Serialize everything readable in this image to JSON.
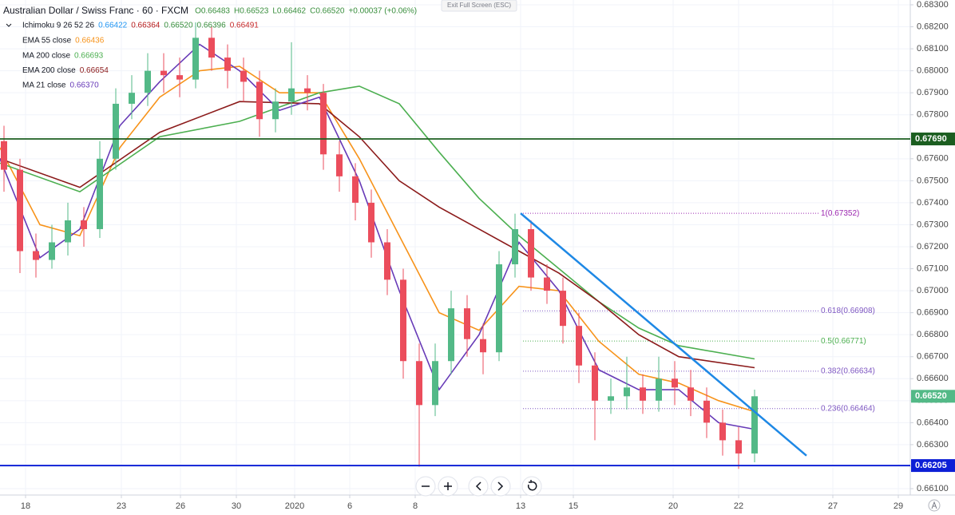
{
  "ui": {
    "exit": "Exit Full Screen (ESC)"
  },
  "chart_data": {
    "type": "candlestick",
    "title": "Australian Dollar / Swiss Franc · 60 · FXCM",
    "ohlc_labels": [
      "O0.66483",
      "H0.66523",
      "L0.66462",
      "C0.66520",
      "+0.00037 (+0.06%)"
    ],
    "ichimoku": {
      "name": "Ichimoku 9 26 52 26",
      "values": [
        "0.66422",
        "0.66364",
        "0.66520",
        "0.66396",
        "0.66491"
      ],
      "colors": [
        "#2196f3",
        "#b71c1c",
        "#388e3c",
        "#388e3c",
        "#c62828"
      ]
    },
    "up_color": "#53b987",
    "down_color": "#eb4d5c",
    "xlim": [
      0,
      1140
    ],
    "xticks": [
      {
        "value": 32,
        "label": "18"
      },
      {
        "value": 152,
        "label": "23"
      },
      {
        "value": 226,
        "label": "26"
      },
      {
        "value": 296,
        "label": "30"
      },
      {
        "value": 369,
        "label": "2020"
      },
      {
        "value": 438,
        "label": "6"
      },
      {
        "value": 520,
        "label": "8"
      },
      {
        "value": 652,
        "label": "13"
      },
      {
        "value": 718,
        "label": "15"
      },
      {
        "value": 843,
        "label": "20"
      },
      {
        "value": 925,
        "label": "22"
      },
      {
        "value": 1043,
        "label": "27"
      },
      {
        "value": 1125,
        "label": "29"
      }
    ],
    "ylim": [
      0.6608,
      0.683
    ],
    "yticks": [
      {
        "value": 0.661,
        "label": "0.66100"
      },
      {
        "value": 0.662,
        "label": "0.66200"
      },
      {
        "value": 0.663,
        "label": "0.66300"
      },
      {
        "value": 0.664,
        "label": "0.66400"
      },
      {
        "value": 0.665,
        "label": "0.66500"
      },
      {
        "value": 0.666,
        "label": "0.66600"
      },
      {
        "value": 0.667,
        "label": "0.66700"
      },
      {
        "value": 0.668,
        "label": "0.66800"
      },
      {
        "value": 0.669,
        "label": "0.66900"
      },
      {
        "value": 0.67,
        "label": "0.67000"
      },
      {
        "value": 0.671,
        "label": "0.67100"
      },
      {
        "value": 0.672,
        "label": "0.67200"
      },
      {
        "value": 0.673,
        "label": "0.67300"
      },
      {
        "value": 0.674,
        "label": "0.67400"
      },
      {
        "value": 0.675,
        "label": "0.67500"
      },
      {
        "value": 0.676,
        "label": "0.67600"
      },
      {
        "value": 0.677,
        "label": "0.67700"
      },
      {
        "value": 0.678,
        "label": "0.67800"
      },
      {
        "value": 0.679,
        "label": "0.67900"
      },
      {
        "value": 0.68,
        "label": "0.68000"
      },
      {
        "value": 0.681,
        "label": "0.68100"
      },
      {
        "value": 0.682,
        "label": "0.68200"
      },
      {
        "value": 0.683,
        "label": "0.68300"
      }
    ],
    "grid": true,
    "x": [
      5,
      25,
      45,
      65,
      85,
      105,
      125,
      145,
      165,
      185,
      205,
      225,
      245,
      265,
      285,
      305,
      325,
      345,
      365,
      385,
      405,
      425,
      445,
      465,
      485,
      505,
      525,
      545,
      565,
      585,
      605,
      625,
      645,
      665,
      685,
      705,
      725,
      745,
      765,
      785,
      805,
      825,
      845,
      865,
      885,
      905,
      925,
      945
    ],
    "open": [
      0.6768,
      0.6755,
      0.6718,
      0.6714,
      0.6722,
      0.6732,
      0.6728,
      0.676,
      0.6785,
      0.679,
      0.68,
      0.6798,
      0.6796,
      0.6815,
      0.6806,
      0.68,
      0.6795,
      0.6778,
      0.6786,
      0.6792,
      0.679,
      0.6762,
      0.6752,
      0.674,
      0.6722,
      0.6705,
      0.6668,
      0.6648,
      0.6668,
      0.6692,
      0.6678,
      0.6672,
      0.6712,
      0.6728,
      0.6706,
      0.67,
      0.6684,
      0.6666,
      0.665,
      0.6652,
      0.6656,
      0.665,
      0.666,
      0.6656,
      0.665,
      0.664,
      0.6632,
      0.6626
    ],
    "high": [
      0.6775,
      0.676,
      0.6726,
      0.673,
      0.674,
      0.6738,
      0.6768,
      0.6792,
      0.6798,
      0.6808,
      0.6808,
      0.6806,
      0.6822,
      0.682,
      0.6812,
      0.6806,
      0.68,
      0.6792,
      0.6813,
      0.6798,
      0.6794,
      0.6768,
      0.6758,
      0.6746,
      0.6728,
      0.671,
      0.6676,
      0.6676,
      0.67,
      0.6698,
      0.6685,
      0.6718,
      0.6735,
      0.6732,
      0.6712,
      0.6706,
      0.669,
      0.6672,
      0.666,
      0.667,
      0.6662,
      0.667,
      0.6668,
      0.6664,
      0.6656,
      0.6646,
      0.6638,
      0.6655
    ],
    "low": [
      0.6745,
      0.6708,
      0.6706,
      0.671,
      0.6716,
      0.672,
      0.6724,
      0.6755,
      0.6778,
      0.6784,
      0.679,
      0.6788,
      0.6792,
      0.68,
      0.6792,
      0.6786,
      0.677,
      0.6772,
      0.678,
      0.6782,
      0.6755,
      0.6745,
      0.6732,
      0.6715,
      0.6698,
      0.666,
      0.662,
      0.6643,
      0.6662,
      0.667,
      0.6662,
      0.6668,
      0.6706,
      0.67,
      0.6694,
      0.6676,
      0.6658,
      0.6632,
      0.6644,
      0.6646,
      0.6644,
      0.6645,
      0.6648,
      0.6643,
      0.6633,
      0.6625,
      0.6619,
      0.6622
    ],
    "close": [
      0.6755,
      0.6718,
      0.6714,
      0.6722,
      0.6732,
      0.6728,
      0.676,
      0.6785,
      0.679,
      0.68,
      0.6798,
      0.6796,
      0.6815,
      0.6806,
      0.68,
      0.6795,
      0.6778,
      0.6786,
      0.6792,
      0.679,
      0.6762,
      0.6752,
      0.674,
      0.6722,
      0.6705,
      0.6668,
      0.6648,
      0.6668,
      0.6692,
      0.6678,
      0.6672,
      0.6712,
      0.6728,
      0.6706,
      0.67,
      0.6684,
      0.6666,
      0.665,
      0.6652,
      0.6656,
      0.665,
      0.666,
      0.6656,
      0.665,
      0.664,
      0.6632,
      0.6626,
      0.6652
    ],
    "lines": [
      {
        "name": "EMA 55 close",
        "legend_value": "0.66436",
        "color": "#f7931a",
        "x": [
          0,
          50,
          100,
          150,
          200,
          250,
          300,
          350,
          400,
          450,
          500,
          550,
          600,
          650,
          700,
          750,
          800,
          850,
          900,
          945
        ],
        "values": [
          0.6765,
          0.673,
          0.6725,
          0.6765,
          0.6788,
          0.68,
          0.6802,
          0.679,
          0.679,
          0.676,
          0.6725,
          0.669,
          0.6682,
          0.6702,
          0.67,
          0.6677,
          0.6662,
          0.6658,
          0.665,
          0.6645
        ]
      },
      {
        "name": "MA 200 close",
        "legend_value": "0.66693",
        "color": "#4caf50",
        "x": [
          0,
          100,
          200,
          300,
          400,
          450,
          500,
          550,
          600,
          650,
          700,
          750,
          800,
          850,
          945
        ],
        "values": [
          0.6758,
          0.6745,
          0.677,
          0.6777,
          0.679,
          0.6793,
          0.6785,
          0.6763,
          0.6742,
          0.6725,
          0.671,
          0.6695,
          0.6683,
          0.6675,
          0.6669
        ]
      },
      {
        "name": "EMA 200 close",
        "legend_value": "0.66654",
        "color": "#8b1a1a",
        "x": [
          0,
          100,
          200,
          300,
          400,
          450,
          500,
          550,
          600,
          650,
          700,
          750,
          800,
          850,
          945
        ],
        "values": [
          0.676,
          0.6747,
          0.6772,
          0.6786,
          0.6785,
          0.677,
          0.675,
          0.6738,
          0.6728,
          0.6718,
          0.6708,
          0.6695,
          0.668,
          0.667,
          0.6665
        ]
      },
      {
        "name": "MA 21 close",
        "legend_value": "0.66370",
        "color": "#673ab7",
        "x": [
          0,
          50,
          100,
          150,
          200,
          250,
          300,
          350,
          400,
          450,
          500,
          550,
          600,
          650,
          700,
          750,
          800,
          850,
          900,
          945
        ],
        "values": [
          0.676,
          0.6715,
          0.6728,
          0.6775,
          0.6795,
          0.6812,
          0.68,
          0.6782,
          0.6788,
          0.675,
          0.67,
          0.6655,
          0.668,
          0.6722,
          0.67,
          0.6664,
          0.6655,
          0.6655,
          0.664,
          0.6637
        ]
      }
    ],
    "hlines": [
      {
        "value": 0.6769,
        "label": "0.67690",
        "color": "#1b5e20"
      },
      {
        "value": 0.66205,
        "label": "0.66205",
        "color": "#0d1fd6"
      }
    ],
    "last": {
      "value": 0.6652,
      "label": "0.66520",
      "color": "#53b987"
    },
    "trendline": {
      "x": [
        652,
        1010
      ],
      "values": [
        0.67352,
        0.6625
      ],
      "color": "#1e88e5"
    },
    "fib": {
      "x": [
        655,
        1025
      ],
      "levels": [
        {
          "value": 0.67352,
          "label": "1(0.67352)",
          "color": "#9c27b0"
        },
        {
          "value": 0.66908,
          "label": "0.618(0.66908)",
          "color": "#7e57c2"
        },
        {
          "value": 0.66771,
          "label": "0.5(0.66771)",
          "color": "#4caf50"
        },
        {
          "value": 0.66634,
          "label": "0.382(0.66634)",
          "color": "#7e57c2"
        },
        {
          "value": 0.66464,
          "label": "0.236(0.66464)",
          "color": "#7e57c2"
        }
      ]
    }
  }
}
